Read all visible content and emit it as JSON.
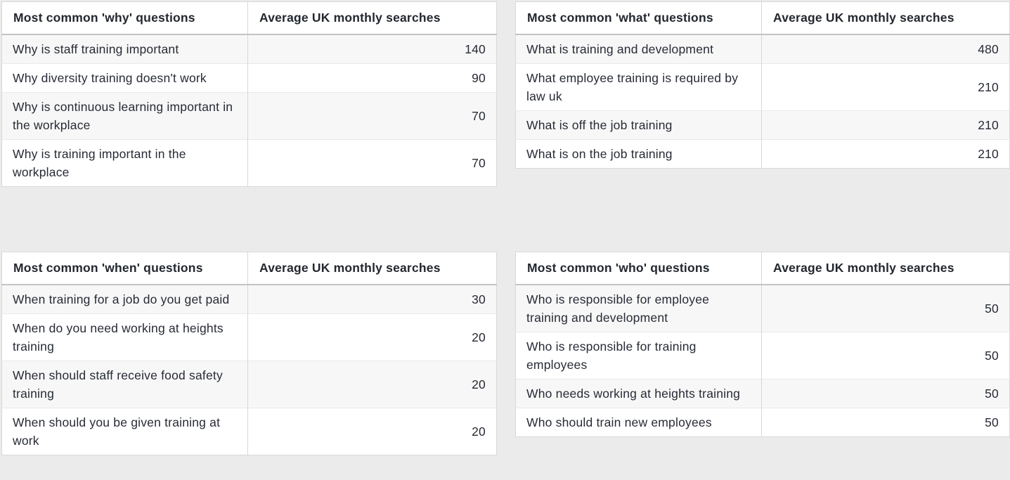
{
  "page": {
    "background_color": "#ebebeb",
    "table_background_color": "#ffffff",
    "striped_row_color": "#f7f7f7",
    "border_color": "#d8d8d8",
    "header_rule_color": "#c3c3c3",
    "text_color": "#272b35"
  },
  "chart_data": [
    {
      "type": "table",
      "title": "Most common 'why' questions",
      "columns": [
        "Most common 'why' questions",
        "Average UK monthly searches"
      ],
      "rows": [
        [
          "Why is staff training important",
          140
        ],
        [
          "Why diversity training doesn't work",
          90
        ],
        [
          "Why is continuous learning important in the workplace",
          70
        ],
        [
          "Why is training important in the workplace",
          70
        ]
      ]
    },
    {
      "type": "table",
      "title": "Most common 'what' questions",
      "columns": [
        "Most common 'what' questions",
        "Average UK monthly searches"
      ],
      "rows": [
        [
          "What is training and development",
          480
        ],
        [
          "What employee training is required by law uk",
          210
        ],
        [
          "What is off the job training",
          210
        ],
        [
          "What is on the job training",
          210
        ]
      ]
    },
    {
      "type": "table",
      "title": "Most common 'when' questions",
      "columns": [
        "Most common 'when' questions",
        "Average UK monthly searches"
      ],
      "rows": [
        [
          "When training for a job do you get paid",
          30
        ],
        [
          "When do you need working at heights training",
          20
        ],
        [
          "When should staff receive food safety training",
          20
        ],
        [
          "When should you be given training at work",
          20
        ]
      ]
    },
    {
      "type": "table",
      "title": "Most common 'who' questions",
      "columns": [
        "Most common 'who' questions",
        "Average UK monthly searches"
      ],
      "rows": [
        [
          "Who is responsible for employee training and development",
          50
        ],
        [
          "Who is responsible for training employees",
          50
        ],
        [
          "Who needs working at heights training",
          50
        ],
        [
          "Who should train new employees",
          50
        ]
      ]
    }
  ]
}
